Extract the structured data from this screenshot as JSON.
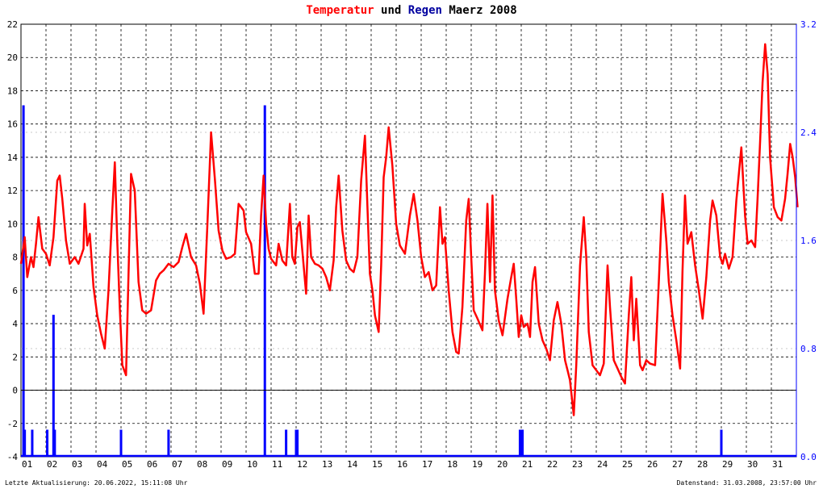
{
  "title": {
    "part1": "Temperatur",
    "part2": " und ",
    "part3": "Regen",
    "part4": " Maerz 2008",
    "color_temp": "#ff0000",
    "color_rain": "#0000a0",
    "color_rest": "#000000"
  },
  "footer": {
    "left": "Letzte Aktualisierung: 20.06.2022, 15:11:08 Uhr",
    "right": "Datenstand: 31.03.2008, 23:57:00 Uhr"
  },
  "chart_data": {
    "type": "line",
    "x_unit": "day of March 2008",
    "x_ticks": [
      "01",
      "02",
      "03",
      "04",
      "05",
      "06",
      "07",
      "08",
      "09",
      "10",
      "11",
      "12",
      "13",
      "14",
      "15",
      "16",
      "17",
      "18",
      "19",
      "20",
      "21",
      "22",
      "23",
      "24",
      "25",
      "26",
      "27",
      "28",
      "29",
      "30",
      "31"
    ],
    "xlim": [
      1,
      32
    ],
    "y_left": {
      "ticks": [
        "22",
        "20",
        "18",
        "16",
        "14",
        "12",
        "10",
        "8",
        "6",
        "4",
        "2",
        "0",
        "-2",
        "-4"
      ],
      "lim": [
        -4,
        22
      ],
      "color": "#000000"
    },
    "y_right": {
      "ticks": [
        "3.2",
        "2.4",
        "1.6",
        "0.8",
        "0.0"
      ],
      "lim": [
        0,
        3.2
      ],
      "color": "#0000ff"
    },
    "grid": true,
    "series": [
      {
        "name": "Temperatur",
        "axis": "left",
        "color": "#ff0000",
        "points": [
          [
            1.0,
            7.6
          ],
          [
            1.15,
            9.2
          ],
          [
            1.25,
            6.8
          ],
          [
            1.4,
            8.0
          ],
          [
            1.5,
            7.4
          ],
          [
            1.6,
            8.8
          ],
          [
            1.7,
            10.4
          ],
          [
            1.85,
            8.5
          ],
          [
            2.0,
            8.2
          ],
          [
            2.15,
            7.5
          ],
          [
            2.3,
            9.2
          ],
          [
            2.45,
            12.6
          ],
          [
            2.55,
            12.9
          ],
          [
            2.65,
            11.5
          ],
          [
            2.8,
            9.0
          ],
          [
            2.95,
            7.6
          ],
          [
            3.15,
            8.0
          ],
          [
            3.3,
            7.6
          ],
          [
            3.5,
            8.5
          ],
          [
            3.55,
            11.2
          ],
          [
            3.65,
            8.7
          ],
          [
            3.75,
            9.4
          ],
          [
            3.9,
            6.2
          ],
          [
            4.05,
            4.5
          ],
          [
            4.2,
            3.4
          ],
          [
            4.35,
            2.5
          ],
          [
            4.5,
            6.0
          ],
          [
            4.65,
            10.8
          ],
          [
            4.75,
            13.7
          ],
          [
            4.85,
            9.0
          ],
          [
            4.95,
            5.0
          ],
          [
            5.05,
            1.5
          ],
          [
            5.2,
            0.9
          ],
          [
            5.3,
            7.0
          ],
          [
            5.4,
            13.0
          ],
          [
            5.55,
            12.0
          ],
          [
            5.7,
            6.5
          ],
          [
            5.85,
            4.8
          ],
          [
            6.0,
            4.6
          ],
          [
            6.2,
            4.8
          ],
          [
            6.4,
            6.6
          ],
          [
            6.55,
            7.0
          ],
          [
            6.7,
            7.2
          ],
          [
            6.9,
            7.6
          ],
          [
            7.1,
            7.4
          ],
          [
            7.3,
            7.7
          ],
          [
            7.45,
            8.6
          ],
          [
            7.6,
            9.4
          ],
          [
            7.8,
            8.0
          ],
          [
            8.0,
            7.5
          ],
          [
            8.15,
            6.4
          ],
          [
            8.3,
            4.6
          ],
          [
            8.45,
            9.8
          ],
          [
            8.6,
            15.5
          ],
          [
            8.75,
            12.7
          ],
          [
            8.9,
            9.6
          ],
          [
            9.05,
            8.4
          ],
          [
            9.2,
            7.9
          ],
          [
            9.4,
            8.0
          ],
          [
            9.55,
            8.2
          ],
          [
            9.7,
            11.2
          ],
          [
            9.9,
            10.8
          ],
          [
            10.0,
            9.5
          ],
          [
            10.2,
            8.8
          ],
          [
            10.35,
            7.0
          ],
          [
            10.5,
            7.0
          ],
          [
            10.6,
            10.5
          ],
          [
            10.7,
            12.9
          ],
          [
            10.8,
            10.0
          ],
          [
            10.9,
            8.5
          ],
          [
            11.0,
            7.9
          ],
          [
            11.2,
            7.5
          ],
          [
            11.3,
            8.8
          ],
          [
            11.45,
            7.8
          ],
          [
            11.6,
            7.5
          ],
          [
            11.75,
            11.2
          ],
          [
            11.85,
            8.0
          ],
          [
            11.95,
            7.6
          ],
          [
            12.05,
            9.8
          ],
          [
            12.15,
            10.1
          ],
          [
            12.3,
            7.5
          ],
          [
            12.4,
            5.8
          ],
          [
            12.5,
            10.5
          ],
          [
            12.6,
            8.0
          ],
          [
            12.75,
            7.6
          ],
          [
            12.9,
            7.5
          ],
          [
            13.05,
            7.3
          ],
          [
            13.2,
            6.8
          ],
          [
            13.35,
            6.0
          ],
          [
            13.5,
            7.8
          ],
          [
            13.6,
            11.0
          ],
          [
            13.7,
            12.9
          ],
          [
            13.85,
            9.6
          ],
          [
            14.0,
            7.8
          ],
          [
            14.15,
            7.3
          ],
          [
            14.3,
            7.1
          ],
          [
            14.45,
            8.0
          ],
          [
            14.6,
            12.6
          ],
          [
            14.75,
            15.3
          ],
          [
            14.85,
            11.0
          ],
          [
            14.95,
            7.0
          ],
          [
            15.05,
            6.0
          ],
          [
            15.15,
            4.5
          ],
          [
            15.3,
            3.5
          ],
          [
            15.4,
            7.5
          ],
          [
            15.5,
            12.8
          ],
          [
            15.6,
            14.0
          ],
          [
            15.7,
            15.8
          ],
          [
            15.85,
            13.5
          ],
          [
            16.0,
            10.0
          ],
          [
            16.15,
            8.7
          ],
          [
            16.35,
            8.2
          ],
          [
            16.55,
            10.5
          ],
          [
            16.7,
            11.8
          ],
          [
            16.85,
            10.2
          ],
          [
            17.0,
            8.0
          ],
          [
            17.15,
            6.8
          ],
          [
            17.3,
            7.1
          ],
          [
            17.45,
            6.0
          ],
          [
            17.6,
            6.3
          ],
          [
            17.75,
            11.0
          ],
          [
            17.85,
            8.8
          ],
          [
            17.95,
            9.2
          ],
          [
            18.1,
            6.0
          ],
          [
            18.25,
            3.5
          ],
          [
            18.4,
            2.3
          ],
          [
            18.5,
            2.2
          ],
          [
            18.65,
            5.0
          ],
          [
            18.8,
            10.2
          ],
          [
            18.9,
            11.5
          ],
          [
            19.0,
            8.0
          ],
          [
            19.1,
            4.8
          ],
          [
            19.25,
            4.3
          ],
          [
            19.45,
            3.6
          ],
          [
            19.55,
            7.0
          ],
          [
            19.65,
            11.2
          ],
          [
            19.75,
            6.5
          ],
          [
            19.85,
            11.7
          ],
          [
            19.95,
            6.0
          ],
          [
            20.1,
            4.2
          ],
          [
            20.25,
            3.3
          ],
          [
            20.45,
            5.5
          ],
          [
            20.6,
            6.8
          ],
          [
            20.7,
            7.6
          ],
          [
            20.8,
            5.5
          ],
          [
            20.9,
            3.2
          ],
          [
            21.0,
            4.5
          ],
          [
            21.1,
            3.8
          ],
          [
            21.25,
            4.0
          ],
          [
            21.35,
            3.2
          ],
          [
            21.45,
            6.5
          ],
          [
            21.55,
            7.4
          ],
          [
            21.7,
            4.0
          ],
          [
            21.85,
            3.0
          ],
          [
            22.0,
            2.5
          ],
          [
            22.15,
            1.8
          ],
          [
            22.3,
            4.2
          ],
          [
            22.45,
            5.3
          ],
          [
            22.6,
            4.0
          ],
          [
            22.75,
            1.8
          ],
          [
            22.85,
            1.2
          ],
          [
            22.95,
            0.6
          ],
          [
            23.1,
            -1.5
          ],
          [
            23.2,
            1.5
          ],
          [
            23.35,
            7.5
          ],
          [
            23.5,
            10.4
          ],
          [
            23.6,
            8.0
          ],
          [
            23.7,
            3.5
          ],
          [
            23.85,
            1.5
          ],
          [
            24.0,
            1.2
          ],
          [
            24.15,
            0.9
          ],
          [
            24.3,
            1.6
          ],
          [
            24.45,
            7.5
          ],
          [
            24.55,
            5.0
          ],
          [
            24.7,
            1.8
          ],
          [
            24.85,
            1.3
          ],
          [
            25.0,
            0.8
          ],
          [
            25.15,
            0.4
          ],
          [
            25.3,
            4.5
          ],
          [
            25.4,
            6.8
          ],
          [
            25.5,
            3.0
          ],
          [
            25.6,
            5.5
          ],
          [
            25.75,
            1.5
          ],
          [
            25.85,
            1.2
          ],
          [
            26.0,
            1.8
          ],
          [
            26.15,
            1.6
          ],
          [
            26.35,
            1.5
          ],
          [
            26.5,
            6.5
          ],
          [
            26.65,
            11.8
          ],
          [
            26.8,
            9.0
          ],
          [
            26.9,
            6.5
          ],
          [
            27.05,
            4.5
          ],
          [
            27.2,
            3.0
          ],
          [
            27.35,
            1.3
          ],
          [
            27.45,
            7.2
          ],
          [
            27.55,
            11.7
          ],
          [
            27.65,
            8.8
          ],
          [
            27.8,
            9.5
          ],
          [
            27.95,
            7.5
          ],
          [
            28.1,
            6.0
          ],
          [
            28.25,
            4.3
          ],
          [
            28.4,
            6.8
          ],
          [
            28.55,
            10.2
          ],
          [
            28.65,
            11.4
          ],
          [
            28.8,
            10.5
          ],
          [
            28.95,
            8.0
          ],
          [
            29.05,
            7.6
          ],
          [
            29.15,
            8.2
          ],
          [
            29.3,
            7.3
          ],
          [
            29.45,
            8.0
          ],
          [
            29.6,
            11.4
          ],
          [
            29.8,
            14.6
          ],
          [
            29.95,
            10.5
          ],
          [
            30.05,
            8.8
          ],
          [
            30.2,
            9.0
          ],
          [
            30.35,
            8.6
          ],
          [
            30.45,
            11.5
          ],
          [
            30.55,
            15.0
          ],
          [
            30.65,
            18.5
          ],
          [
            30.75,
            20.8
          ],
          [
            30.85,
            19.0
          ],
          [
            30.95,
            14.0
          ],
          [
            31.1,
            11.0
          ],
          [
            31.25,
            10.4
          ],
          [
            31.4,
            10.2
          ],
          [
            31.55,
            11.5
          ],
          [
            31.65,
            13.0
          ],
          [
            31.75,
            14.8
          ],
          [
            31.85,
            14.0
          ],
          [
            31.95,
            12.8
          ],
          [
            32.05,
            11.0
          ]
        ]
      },
      {
        "name": "Regen",
        "axis": "right",
        "color": "#0000ff",
        "bars": [
          [
            1.1,
            2.6
          ],
          [
            1.15,
            0.2
          ],
          [
            1.45,
            0.2
          ],
          [
            2.05,
            0.2
          ],
          [
            2.3,
            1.05
          ],
          [
            2.35,
            0.2
          ],
          [
            5.0,
            0.2
          ],
          [
            6.9,
            0.2
          ],
          [
            10.75,
            2.6
          ],
          [
            11.6,
            0.2
          ],
          [
            12.0,
            0.2
          ],
          [
            12.05,
            0.2
          ],
          [
            20.95,
            0.2
          ],
          [
            21.0,
            0.2
          ],
          [
            21.05,
            0.2
          ],
          [
            29.0,
            0.2
          ]
        ]
      }
    ]
  }
}
